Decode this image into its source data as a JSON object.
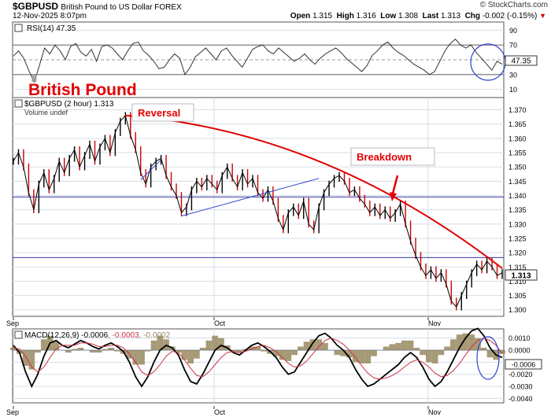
{
  "header": {
    "symbol": "$GBPUSD",
    "name": "British Pound to US Dollar  FOREX",
    "copyright": "© StockCharts.com",
    "date": "12-Nov-2025 8:07pm",
    "open_label": "Open",
    "open": "1.315",
    "high_label": "High",
    "high": "1.316",
    "low_label": "Low",
    "low": "1.308",
    "last_label": "Last",
    "last": "1.313",
    "chg_label": "Chg",
    "chg": "-0.002 (-0.15%)"
  },
  "colors": {
    "price": "#000000",
    "down": "#cc0000",
    "trend": "#e00000",
    "channel": "#3344cc",
    "hline": "#1a1a99",
    "macd_hist": "#8a7a4a",
    "signal": "#cc3344",
    "grid": "#d6dde6"
  },
  "chart_data": [
    {
      "type": "line",
      "panel": "rsi",
      "title": "RSI(14) 47.35",
      "current_label": "47.35",
      "ylim": [
        0,
        100
      ],
      "yticks": [
        10,
        30,
        50,
        70,
        90
      ],
      "overbought": 70,
      "oversold": 30,
      "series": [
        {
          "values": [
            55,
            62,
            52,
            35,
            20,
            42,
            66,
            58,
            70,
            62,
            50,
            68,
            72,
            60,
            55,
            64,
            48,
            68,
            70,
            66,
            58,
            50,
            62,
            72,
            74,
            62,
            56,
            48,
            38,
            40,
            50,
            58,
            52,
            30,
            40,
            54,
            60,
            66,
            58,
            50,
            62,
            66,
            56,
            48,
            40,
            52,
            64,
            68,
            70,
            62,
            58,
            66,
            60,
            54,
            48,
            52,
            58,
            50,
            44,
            52,
            58,
            62,
            66,
            60,
            52,
            46,
            40,
            34,
            42,
            56,
            62,
            70,
            74,
            66,
            60,
            56,
            50,
            44,
            40,
            36,
            30,
            34,
            48,
            62,
            72,
            78,
            70,
            66,
            70,
            60,
            52,
            44,
            36,
            48,
            44
          ]
        }
      ]
    },
    {
      "type": "line",
      "panel": "price",
      "title": "$GBPUSD (2 hour) 1.313",
      "subtitle": "Volume undef",
      "watermark": "British Pound",
      "x_labels": [
        "Sep",
        "Oct",
        "Nov"
      ],
      "ylim": [
        1.298,
        1.374
      ],
      "yticks": [
        1.3,
        1.305,
        1.31,
        1.315,
        1.32,
        1.325,
        1.33,
        1.335,
        1.34,
        1.345,
        1.35,
        1.355,
        1.36,
        1.365,
        1.37
      ],
      "current_label": "1.313",
      "series": [
        {
          "values": [
            1.352,
            1.355,
            1.35,
            1.341,
            1.335,
            1.344,
            1.348,
            1.342,
            1.346,
            1.352,
            1.348,
            1.353,
            1.356,
            1.35,
            1.354,
            1.358,
            1.352,
            1.357,
            1.36,
            1.355,
            1.362,
            1.366,
            1.368,
            1.361,
            1.356,
            1.348,
            1.344,
            1.35,
            1.352,
            1.353,
            1.347,
            1.343,
            1.34,
            1.334,
            1.336,
            1.342,
            1.345,
            1.343,
            1.346,
            1.344,
            1.342,
            1.347,
            1.35,
            1.346,
            1.343,
            1.348,
            1.344,
            1.346,
            1.341,
            1.339,
            1.342,
            1.338,
            1.332,
            1.328,
            1.334,
            1.336,
            1.333,
            1.338,
            1.33,
            1.328,
            1.336,
            1.341,
            1.344,
            1.346,
            1.347,
            1.345,
            1.341,
            1.342,
            1.339,
            1.337,
            1.334,
            1.336,
            1.333,
            1.335,
            1.332,
            1.334,
            1.337,
            1.33,
            1.324,
            1.319,
            1.315,
            1.312,
            1.314,
            1.311,
            1.313,
            1.309,
            1.303,
            1.301,
            1.305,
            1.309,
            1.313,
            1.316,
            1.314,
            1.317,
            1.315,
            1.312,
            1.313
          ]
        }
      ],
      "annotations": {
        "reversal": "Reversal",
        "breakdown": "Breakdown",
        "hlines": [
          1.3395,
          1.3183
        ],
        "trendline": [
          [
            22,
            1.368
          ],
          [
            60,
            1.352
          ],
          [
            96,
            1.3145
          ]
        ],
        "channel_lower": [
          [
            33,
            1.3328
          ],
          [
            60,
            1.346
          ]
        ],
        "early_segment": [
          [
            25,
            1.3455
          ],
          [
            29,
            1.3525
          ]
        ]
      }
    },
    {
      "type": "line",
      "panel": "macd",
      "title": "MACD(12,26,9) -0.0006, -0.0003, -0.0002",
      "title_parts": [
        "MACD(12,26,9) -0.0006",
        ", -0.0003",
        ", -0.0002"
      ],
      "current_label": "-0.0006",
      "x_labels": [
        "Sep",
        "Oct",
        "Nov"
      ],
      "ylim": [
        -0.0043,
        0.0017
      ],
      "yticks": [
        0.001,
        0.0,
        -0.001,
        -0.002,
        -0.003,
        -0.004
      ],
      "ytick_labels": [
        "0.0010",
        "0.0000",
        "-0.0010",
        "-0.0020",
        "-0.0030",
        "-0.0040"
      ],
      "series": [
        {
          "values": [
            0.0004,
            -0.0002,
            -0.0018,
            -0.003,
            -0.002,
            -0.0005,
            0.0006,
            0.0008,
            0.0004,
            0.0002,
            0.0005,
            0.0008,
            0.0006,
            0.0003,
            0.0001,
            0.0004,
            0.0006,
            0.0003,
            -0.0001,
            -0.001,
            -0.0022,
            -0.003,
            -0.0022,
            -0.001,
            0.0,
            0.0004,
            0.0002,
            -0.0004,
            -0.0016,
            -0.0026,
            -0.0028,
            -0.002,
            -0.001,
            0.0,
            0.0004,
            0.0002,
            -0.0002,
            -0.0004,
            0.0,
            0.0004,
            0.0006,
            0.0003,
            -0.0001,
            -0.0006,
            -0.0014,
            -0.002,
            -0.0018,
            -0.001,
            -0.0002,
            0.0006,
            0.0012,
            0.0014,
            0.001,
            0.0004,
            0.0,
            -0.0006,
            -0.0016,
            -0.0024,
            -0.003,
            -0.0028,
            -0.0024,
            -0.002,
            -0.0016,
            -0.0012,
            -0.0006,
            -0.0002,
            -0.0006,
            -0.0014,
            -0.0024,
            -0.003,
            -0.0026,
            -0.0018,
            -0.0008,
            0.0002,
            0.001,
            0.0016,
            0.0018,
            0.0012,
            0.0002,
            -0.0004,
            -0.0006
          ]
        },
        {
          "values": [
            0.0002,
            0.0001,
            -0.0005,
            -0.0014,
            -0.0018,
            -0.0014,
            -0.0006,
            0.0001,
            0.0004,
            0.0004,
            0.0004,
            0.0006,
            0.0006,
            0.0005,
            0.0003,
            0.0003,
            0.0004,
            0.0004,
            0.0002,
            -0.0003,
            -0.001,
            -0.0018,
            -0.0021,
            -0.0018,
            -0.0012,
            -0.0005,
            -0.0001,
            -0.0002,
            -0.0008,
            -0.0015,
            -0.0021,
            -0.0022,
            -0.0018,
            -0.0012,
            -0.0006,
            -0.0002,
            -0.0001,
            -0.0002,
            -0.0001,
            0.0001,
            0.0003,
            0.0004,
            0.0002,
            -0.0001,
            -0.0006,
            -0.0011,
            -0.0014,
            -0.0013,
            -0.0009,
            -0.0003,
            0.0003,
            0.0008,
            0.001,
            0.0008,
            0.0005,
            0.0,
            -0.0006,
            -0.0013,
            -0.0019,
            -0.0023,
            -0.0024,
            -0.0023,
            -0.0021,
            -0.0018,
            -0.0014,
            -0.001,
            -0.0008,
            -0.001,
            -0.0014,
            -0.0019,
            -0.0022,
            -0.0021,
            -0.0017,
            -0.0011,
            -0.0004,
            0.0003,
            0.0008,
            0.001,
            0.0008,
            0.0004,
            -0.0003
          ]
        }
      ]
    }
  ]
}
